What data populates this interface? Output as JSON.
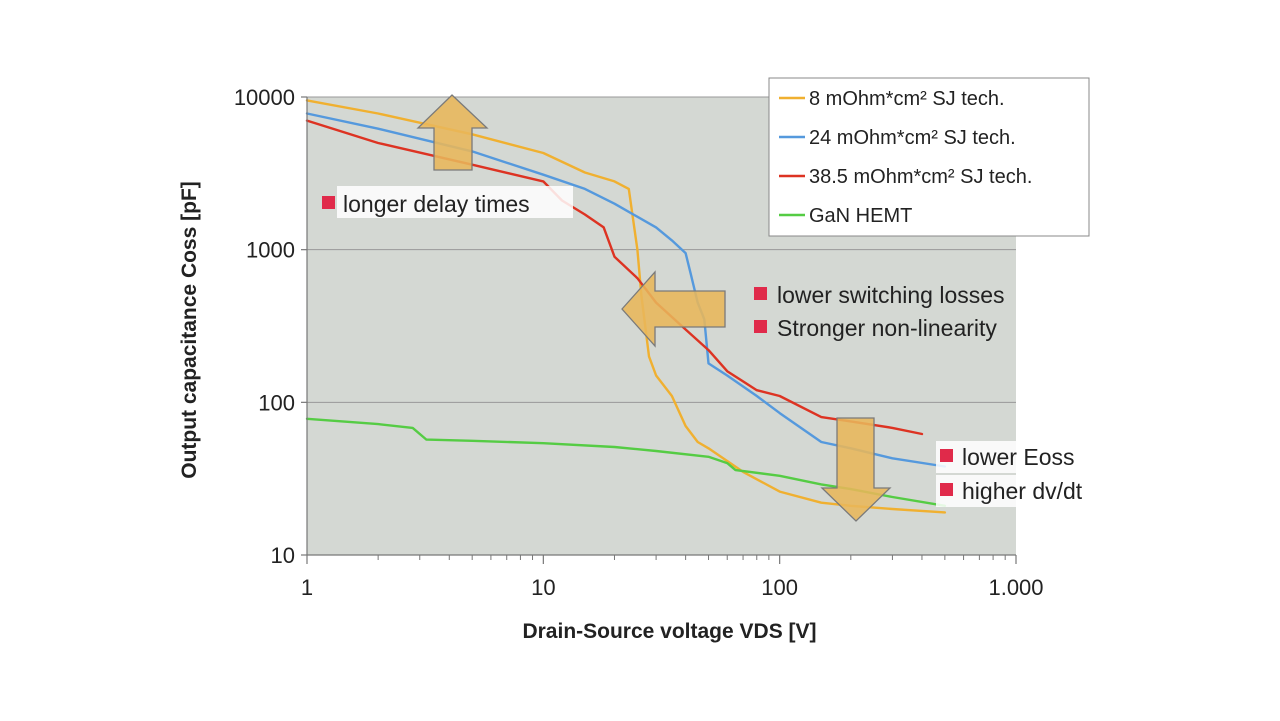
{
  "chart_data": {
    "type": "line",
    "x_scale": "log",
    "y_scale": "log",
    "xlim": [
      1,
      1000
    ],
    "ylim": [
      10,
      10000
    ],
    "xlabel": "Drain-Source voltage VDS [V]",
    "ylabel": "Output capacitance Coss [pF]",
    "x_tick_labels": [
      "1",
      "10",
      "100",
      "1.000"
    ],
    "y_tick_labels": [
      "10",
      "100",
      "1000",
      "10000"
    ],
    "grid": "horizontal",
    "legend_position": "top-right",
    "series": [
      {
        "name": "8 mOhm*cm² SJ tech.",
        "color": "#f0b030",
        "points": [
          [
            1,
            9500
          ],
          [
            2,
            7800
          ],
          [
            5,
            5700
          ],
          [
            10,
            4300
          ],
          [
            15,
            3200
          ],
          [
            20,
            2800
          ],
          [
            23,
            2500
          ],
          [
            25,
            1000
          ],
          [
            26,
            500
          ],
          [
            28,
            200
          ],
          [
            30,
            150
          ],
          [
            35,
            110
          ],
          [
            40,
            70
          ],
          [
            45,
            55
          ],
          [
            50,
            50
          ],
          [
            70,
            35
          ],
          [
            100,
            26
          ],
          [
            150,
            22
          ],
          [
            200,
            21
          ],
          [
            300,
            20
          ],
          [
            500,
            19
          ]
        ]
      },
      {
        "name": "24 mOhm*cm² SJ tech.",
        "color": "#5599dd",
        "points": [
          [
            1,
            7800
          ],
          [
            2,
            6200
          ],
          [
            5,
            4400
          ],
          [
            10,
            3100
          ],
          [
            15,
            2500
          ],
          [
            20,
            2000
          ],
          [
            30,
            1400
          ],
          [
            35,
            1150
          ],
          [
            40,
            950
          ],
          [
            42,
            700
          ],
          [
            45,
            450
          ],
          [
            48,
            350
          ],
          [
            50,
            180
          ],
          [
            60,
            150
          ],
          [
            80,
            110
          ],
          [
            100,
            85
          ],
          [
            150,
            55
          ],
          [
            200,
            50
          ],
          [
            300,
            43
          ],
          [
            500,
            38
          ]
        ]
      },
      {
        "name": "38.5 mOhm*cm² SJ tech.",
        "color": "#dd3322",
        "points": [
          [
            1,
            7000
          ],
          [
            2,
            5000
          ],
          [
            5,
            3600
          ],
          [
            10,
            2800
          ],
          [
            12,
            2100
          ],
          [
            15,
            1700
          ],
          [
            18,
            1400
          ],
          [
            20,
            900
          ],
          [
            25,
            650
          ],
          [
            30,
            450
          ],
          [
            40,
            300
          ],
          [
            50,
            220
          ],
          [
            60,
            160
          ],
          [
            80,
            120
          ],
          [
            100,
            110
          ],
          [
            150,
            80
          ],
          [
            200,
            75
          ],
          [
            300,
            68
          ],
          [
            400,
            62
          ]
        ]
      },
      {
        "name": "GaN HEMT",
        "color": "#55cc44",
        "points": [
          [
            1,
            78
          ],
          [
            2,
            72
          ],
          [
            2.8,
            68
          ],
          [
            3.2,
            57
          ],
          [
            5,
            56
          ],
          [
            10,
            54
          ],
          [
            20,
            51
          ],
          [
            30,
            48
          ],
          [
            50,
            44
          ],
          [
            60,
            40
          ],
          [
            65,
            36
          ],
          [
            100,
            33
          ],
          [
            150,
            29
          ],
          [
            200,
            27
          ],
          [
            300,
            24
          ],
          [
            500,
            21
          ]
        ]
      }
    ],
    "annotations": [
      {
        "text": "longer delay times",
        "direction": "up"
      },
      {
        "text": "lower switching losses",
        "direction": "left"
      },
      {
        "text": "Stronger non-linearity",
        "direction": "left"
      },
      {
        "text": "lower Eoss",
        "direction": "down"
      },
      {
        "text": "higher dv/dt",
        "direction": "down"
      }
    ]
  },
  "colors": {
    "plot_background": "#d4d8d3",
    "gridline": "#999999",
    "arrow_fill": "#e8b65a",
    "arrow_stroke": "#7a7a7a",
    "marker": "#e02a4a"
  }
}
